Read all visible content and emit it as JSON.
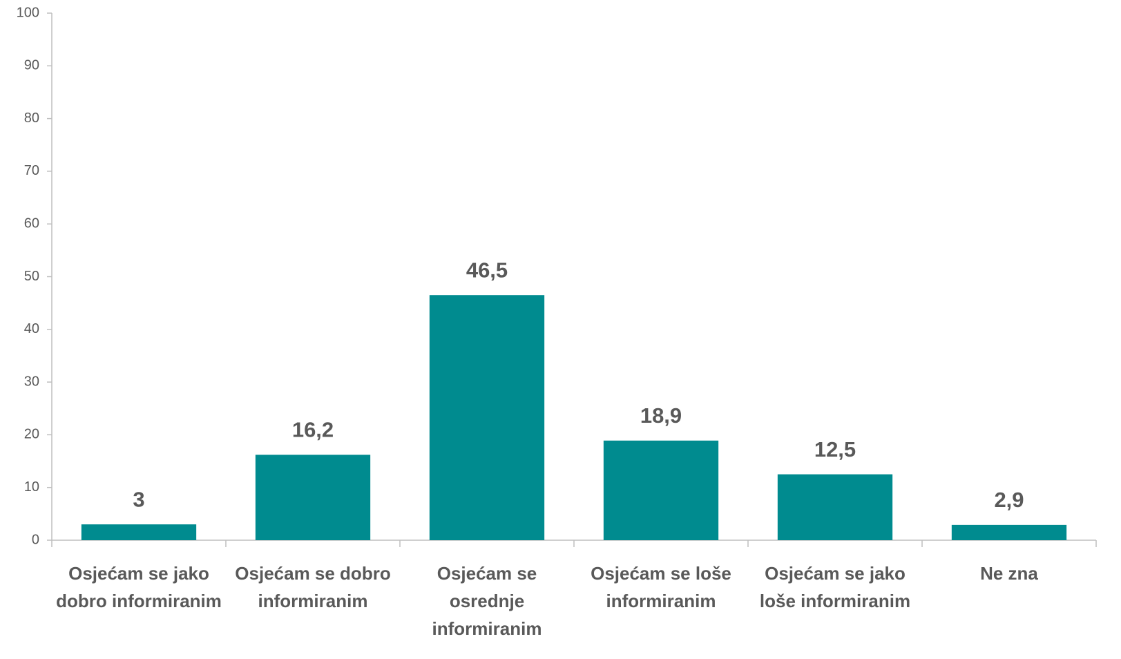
{
  "chart_data": {
    "type": "bar",
    "categories": [
      "Osjećam se jako dobro informiranim",
      "Osjećam se dobro informiranim",
      "Osjećam se osrednje informiranim",
      "Osjećam se loše informiranim",
      "Osjećam se jako loše informiranim",
      "Ne zna"
    ],
    "values": [
      3,
      16.2,
      46.5,
      18.9,
      12.5,
      2.9
    ],
    "value_labels": [
      "3",
      "16,2",
      "46,5",
      "18,9",
      "12,5",
      "2,9"
    ],
    "color": "#008b8f",
    "ylim": [
      0,
      100
    ],
    "yticks": [
      0,
      10,
      20,
      30,
      40,
      50,
      60,
      70,
      80,
      90,
      100
    ],
    "grid": false
  }
}
